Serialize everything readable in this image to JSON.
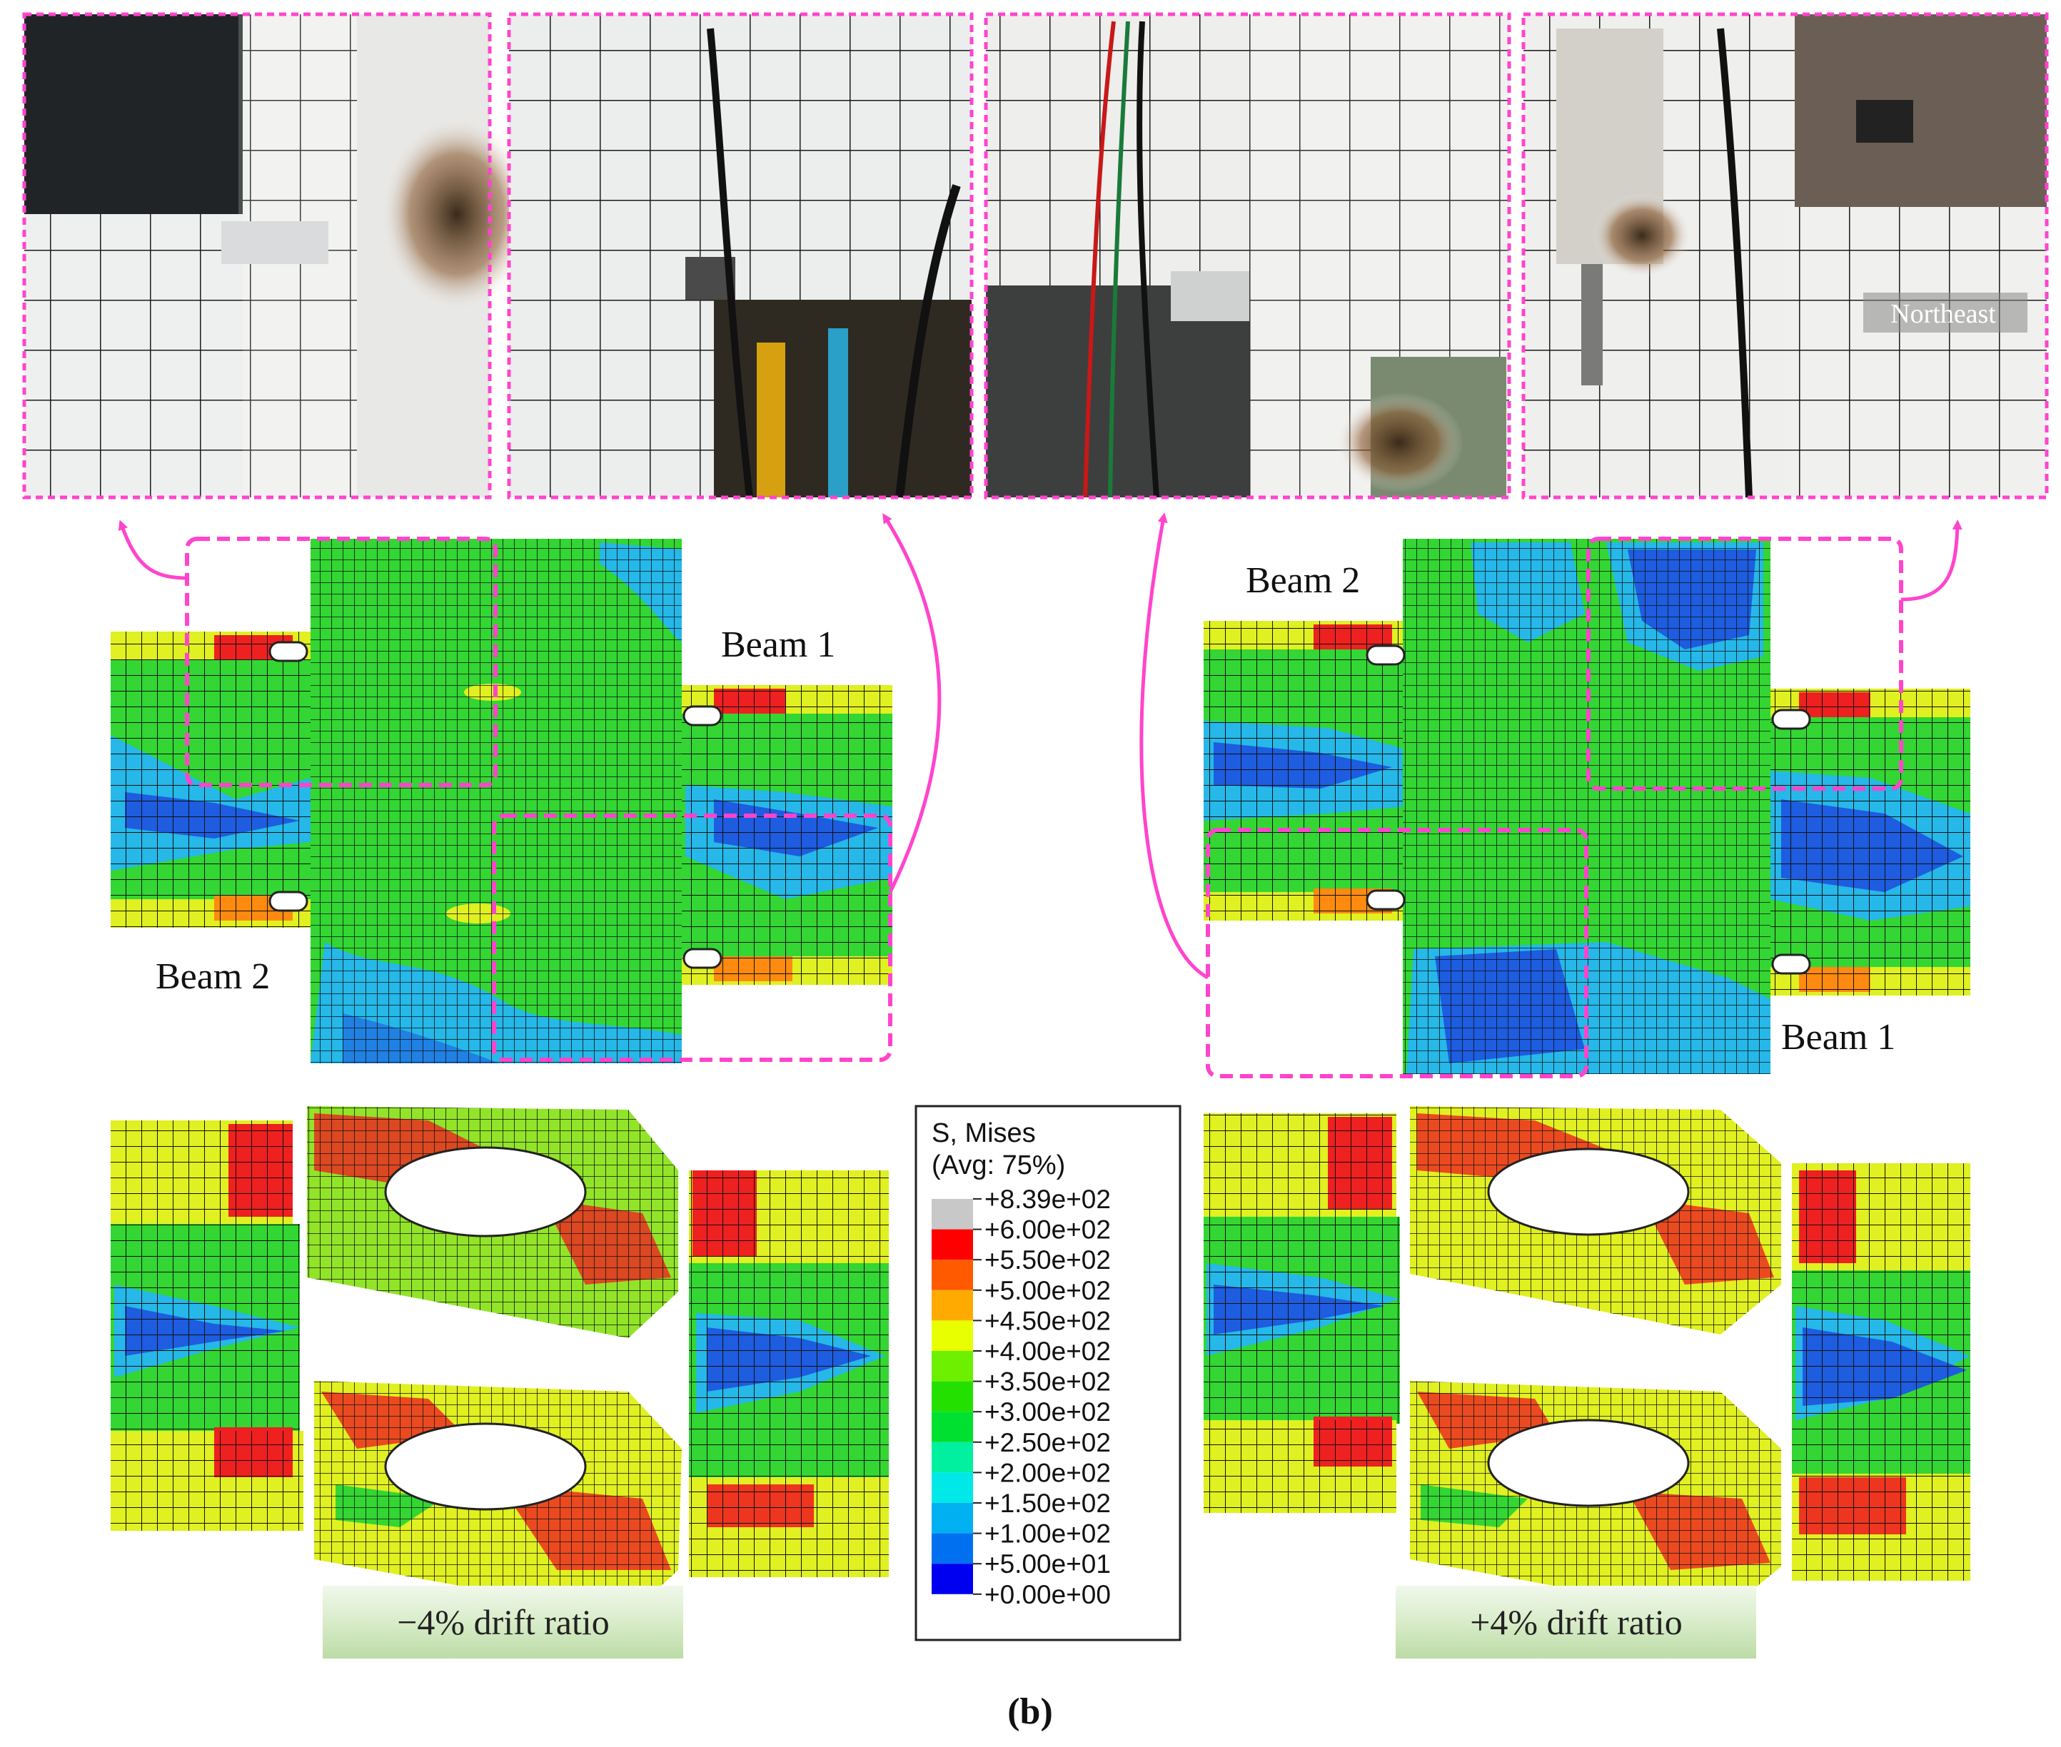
{
  "photos": [
    {
      "id": "photo-1",
      "caption": ""
    },
    {
      "id": "photo-2",
      "caption": ""
    },
    {
      "id": "photo-3",
      "caption": ""
    },
    {
      "id": "photo-4",
      "caption": "Northeast"
    }
  ],
  "left_model": {
    "beam_label_upper": "Beam 1",
    "beam_label_lower": "Beam 2",
    "drift_label": "−4% drift ratio"
  },
  "right_model": {
    "beam_label_upper": "Beam 2",
    "beam_label_lower": "Beam 1",
    "drift_label": "+4% drift ratio"
  },
  "legend": {
    "title_line1": "S, Mises",
    "title_line2": "(Avg: 75%)",
    "levels": [
      {
        "value": "+8.39e+02",
        "color": "#c8c8c8"
      },
      {
        "value": "+6.00e+02",
        "color": "#ff0000"
      },
      {
        "value": "+5.50e+02",
        "color": "#ff5a00"
      },
      {
        "value": "+5.00e+02",
        "color": "#ffaa00"
      },
      {
        "value": "+4.50e+02",
        "color": "#e8ff00"
      },
      {
        "value": "+4.00e+02",
        "color": "#6cf000"
      },
      {
        "value": "+3.50e+02",
        "color": "#24e000"
      },
      {
        "value": "+3.00e+02",
        "color": "#00e030"
      },
      {
        "value": "+2.50e+02",
        "color": "#00f0a0"
      },
      {
        "value": "+2.00e+02",
        "color": "#00e8e8"
      },
      {
        "value": "+1.50e+02",
        "color": "#00b0f0"
      },
      {
        "value": "+1.00e+02",
        "color": "#0070f0"
      },
      {
        "value": "+5.00e+01",
        "color": "#0000f0"
      },
      {
        "value": "+0.00e+00",
        "color": ""
      }
    ]
  },
  "figure_label": "(b)",
  "colors": {
    "callout": "#ff44cc",
    "mesh": "#111111",
    "green": "#33d633",
    "blue": "#1e5ce0",
    "cyan": "#25b8e8",
    "red": "#ee2020",
    "orange": "#ff8a10",
    "yellow": "#e0f020"
  }
}
